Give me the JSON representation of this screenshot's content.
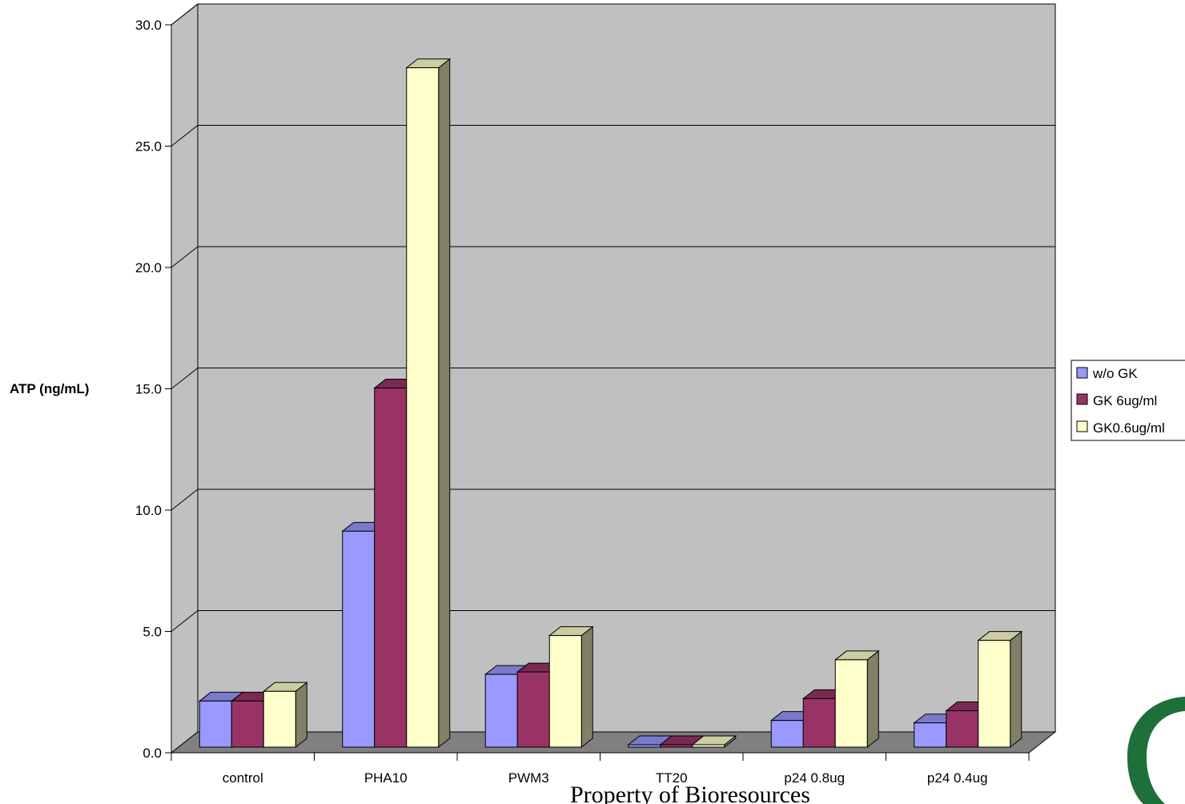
{
  "chart_data": {
    "type": "bar",
    "title": "",
    "xlabel": "",
    "ylabel": "ATP (ng/mL)",
    "ylim": [
      0,
      30
    ],
    "yticks": [
      "0.0",
      "5.0",
      "10.0",
      "15.0",
      "20.0",
      "25.0",
      "30.0"
    ],
    "categories": [
      "control",
      "PHA10",
      "PWM3",
      "TT20",
      "p24 0.8ug",
      "p24 0.4ug"
    ],
    "series": [
      {
        "name": "w/o GK",
        "color": "#9999ff",
        "values": [
          1.9,
          8.9,
          3.0,
          0.1,
          1.1,
          1.0
        ]
      },
      {
        "name": "GK 6ug/ml",
        "color": "#993366",
        "values": [
          1.9,
          14.8,
          3.1,
          0.1,
          2.0,
          1.5
        ]
      },
      {
        "name": "GK0.6ug/ml",
        "color": "#ffffcc",
        "values": [
          2.3,
          28.0,
          4.6,
          0.1,
          3.6,
          4.4
        ]
      }
    ],
    "grid": true,
    "legend_position": "right",
    "style": "3d-clustered-column"
  },
  "watermark": "Property of Bioresources"
}
